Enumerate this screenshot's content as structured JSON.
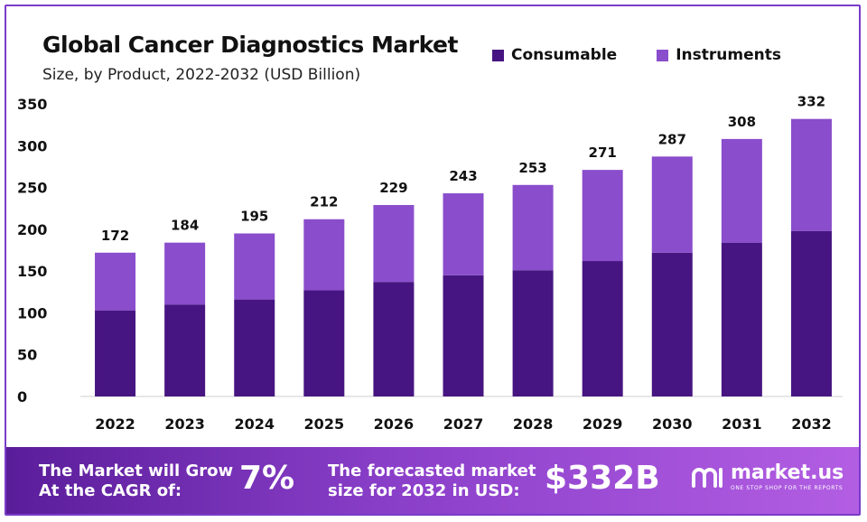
{
  "colors": {
    "consumable": "#471581",
    "instruments": "#8a4dcc",
    "frame": "#7a3cc7"
  },
  "chart_data": {
    "type": "bar",
    "stacked": true,
    "title": "Global Cancer Diagnostics Market",
    "subtitle": "Size, by Product, 2022-2032 (USD Billion)",
    "xlabel": "",
    "ylabel": "",
    "ylim": [
      0,
      350
    ],
    "yticks": [
      0,
      50,
      100,
      150,
      200,
      250,
      300,
      350
    ],
    "grid": false,
    "legend_position": "top-right",
    "categories": [
      "2022",
      "2023",
      "2024",
      "2025",
      "2026",
      "2027",
      "2028",
      "2029",
      "2030",
      "2031",
      "2032"
    ],
    "series": [
      {
        "name": "Consumable",
        "values": [
          103,
          110,
          116,
          127,
          137,
          145,
          151,
          162,
          172,
          184,
          198
        ]
      },
      {
        "name": "Instruments",
        "values": [
          69,
          74,
          79,
          85,
          92,
          98,
          102,
          109,
          115,
          124,
          134
        ]
      }
    ],
    "totals": [
      172,
      184,
      195,
      212,
      229,
      243,
      253,
      271,
      287,
      308,
      332
    ]
  },
  "footer": {
    "cagr_line1": "The Market will Grow",
    "cagr_line2": "At the CAGR of:",
    "cagr_value": "7%",
    "forecast_line1": "The forecasted market",
    "forecast_line2": "size for 2032 in USD:",
    "forecast_value": "$332B",
    "brand_name": "market.us",
    "brand_tagline": "ONE STOP SHOP FOR THE REPORTS"
  }
}
